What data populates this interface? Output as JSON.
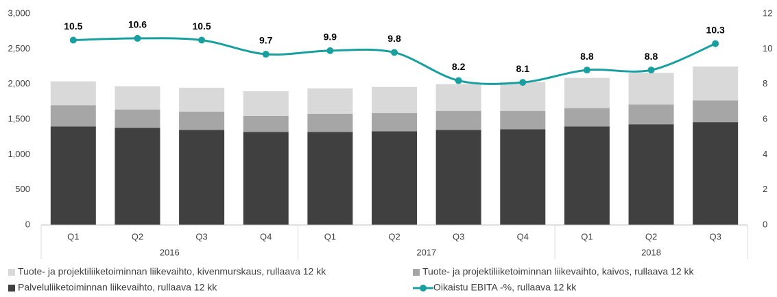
{
  "chart_data": {
    "type": "bar-line",
    "categories": [
      "Q1",
      "Q2",
      "Q3",
      "Q4",
      "Q1",
      "Q2",
      "Q3",
      "Q4",
      "Q1",
      "Q2",
      "Q3"
    ],
    "year_labels": [
      "2016",
      null,
      null,
      null,
      "2017",
      null,
      null,
      null,
      "2018",
      null,
      null
    ],
    "series": [
      {
        "name": "Palveluliiketoiminnan liikevaihto, rullaava 12 kk",
        "color": "#404040",
        "type": "bar",
        "values": [
          1400,
          1380,
          1350,
          1320,
          1320,
          1330,
          1350,
          1360,
          1400,
          1430,
          1460
        ]
      },
      {
        "name": "Tuote- ja projektiliiketoiminnan liikevaihto, kaivos, rullaava 12 kk",
        "color": "#a6a6a6",
        "type": "bar",
        "values": [
          300,
          260,
          260,
          230,
          260,
          260,
          270,
          260,
          260,
          280,
          310
        ]
      },
      {
        "name": "Tuote- ja projektiliiketoiminnan liikevaihto, kivenmurskaus, rullaava 12 kk",
        "color": "#d9d9d9",
        "type": "bar",
        "values": [
          340,
          330,
          340,
          350,
          360,
          370,
          380,
          410,
          430,
          450,
          480
        ]
      },
      {
        "name": "Oikaistu EBITA -%, rullaava 12 kk",
        "color": "#1a9fa0",
        "type": "line",
        "axis": "y2",
        "values": [
          10.5,
          10.6,
          10.5,
          9.7,
          9.9,
          9.8,
          8.2,
          8.1,
          8.8,
          8.8,
          10.3
        ]
      }
    ],
    "ylim": [
      0,
      3000
    ],
    "yticks": [
      0,
      500,
      {
        "value": 1000,
        "label": "1,000"
      },
      {
        "value": 1500,
        "label": "1,500"
      },
      {
        "value": 2000,
        "label": "2,000"
      },
      {
        "value": 2500,
        "label": "2,500"
      },
      {
        "value": 3000,
        "label": "3,000"
      }
    ],
    "y2lim": [
      0,
      12
    ],
    "y2ticks": [
      0,
      2,
      4,
      6,
      8,
      10,
      12
    ]
  }
}
